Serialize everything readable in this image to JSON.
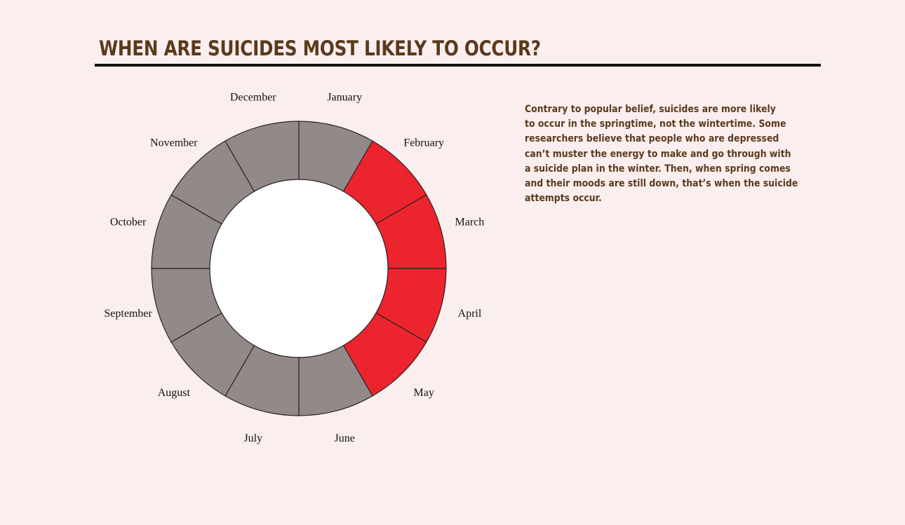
{
  "title": "WHEN ARE SUICIDES MOST LIKELY TO OCCUR?",
  "description_lines": [
    "Contrary to popular belief, suicides are more likely",
    "to occur in the springtime, not the wintertime. Some",
    "researchers believe that people who are depressed",
    "can’t muster the energy to make and go through with",
    "a suicide plan in the winter. Then, when spring comes",
    "and their moods are still down, that’s when the suicide",
    "attempts occur."
  ],
  "colors": {
    "highlight": "#ec242d",
    "base": "#928a89",
    "background": "#fbeeee",
    "text": "#5a3a1c"
  },
  "chart_data": {
    "type": "pie",
    "style": "donut",
    "categories": [
      "January",
      "February",
      "March",
      "April",
      "May",
      "June",
      "July",
      "August",
      "September",
      "October",
      "November",
      "December"
    ],
    "values": [
      1,
      1,
      1,
      1,
      1,
      1,
      1,
      1,
      1,
      1,
      1,
      1
    ],
    "highlighted": [
      false,
      true,
      true,
      true,
      true,
      false,
      false,
      false,
      false,
      false,
      false,
      false
    ]
  }
}
